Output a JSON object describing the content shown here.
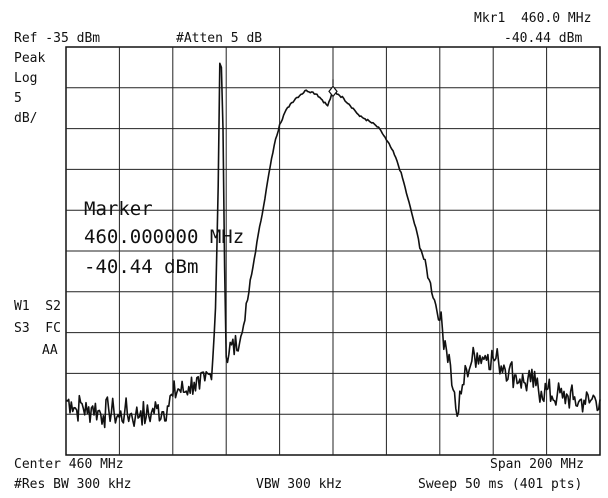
{
  "header": {
    "mkr_label": "Mkr1  460.0 MHz",
    "ref": "Ref -35 dBm",
    "atten": "#Atten 5 dB",
    "mkr_value": "-40.44 dBm"
  },
  "left_panel": {
    "peak": "Peak",
    "log": "Log",
    "scale_num": "5",
    "scale_unit": "dB/",
    "w1s2": "W1  S2",
    "s3fc": "S3  FC",
    "aa": "AA"
  },
  "marker_box": {
    "title": "Marker",
    "freq": "460.000000 MHz",
    "level": "-40.44 dBm"
  },
  "footer": {
    "center": "Center 460 MHz",
    "span": "Span 200 MHz",
    "rbw": "#Res BW 300 kHz",
    "vbw": "VBW 300 kHz",
    "sweep": "Sweep 50 ms (401 pts)"
  },
  "chart_data": {
    "type": "line",
    "x_unit": "MHz",
    "y_unit": "dBm",
    "xlim": [
      360,
      560
    ],
    "ylim": [
      -85,
      -35
    ],
    "grid": true,
    "divisions": {
      "x": 10,
      "y": 10
    },
    "series": [
      {
        "points": [
          [
            360,
            -78.3
          ],
          [
            362,
            -78.5
          ],
          [
            364,
            -79.5
          ],
          [
            366,
            -78.7
          ],
          [
            368,
            -79.9
          ],
          [
            370,
            -79.0
          ],
          [
            372,
            -79.6
          ],
          [
            374,
            -80.2
          ],
          [
            376,
            -79.4
          ],
          [
            378,
            -79.8
          ],
          [
            380,
            -80.4
          ],
          [
            382,
            -79.7
          ],
          [
            384,
            -80.0
          ],
          [
            386,
            -80.3
          ],
          [
            388,
            -79.6
          ],
          [
            390,
            -80.4
          ],
          [
            392,
            -79.8
          ],
          [
            394,
            -79.3
          ],
          [
            396,
            -79.7
          ],
          [
            398,
            -79.0
          ],
          [
            400,
            -77.8
          ],
          [
            402,
            -76.9
          ],
          [
            404,
            -77.3
          ],
          [
            406,
            -76.6
          ],
          [
            408,
            -76.1
          ],
          [
            410,
            -76.9
          ],
          [
            412,
            -75.9
          ],
          [
            414,
            -75.1
          ],
          [
            415,
            -73.0
          ],
          [
            416,
            -67.0
          ],
          [
            417,
            -52.0
          ],
          [
            417.6,
            -37.0
          ],
          [
            418.2,
            -37.5
          ],
          [
            418.8,
            -45.0
          ],
          [
            419.4,
            -62.0
          ],
          [
            420,
            -73.0
          ],
          [
            422,
            -71.5
          ],
          [
            424,
            -72.2
          ],
          [
            426,
            -70.0
          ],
          [
            428,
            -66.0
          ],
          [
            430,
            -62.0
          ],
          [
            432,
            -58.0
          ],
          [
            434,
            -54.5
          ],
          [
            436,
            -50.5
          ],
          [
            438,
            -47.0
          ],
          [
            440,
            -44.5
          ],
          [
            442,
            -43.0
          ],
          [
            444,
            -42.0
          ],
          [
            446,
            -41.3
          ],
          [
            448,
            -40.8
          ],
          [
            450,
            -40.3
          ],
          [
            452,
            -40.5
          ],
          [
            454,
            -40.8
          ],
          [
            456,
            -41.5
          ],
          [
            458,
            -42.2
          ],
          [
            460,
            -40.44
          ],
          [
            462,
            -40.8
          ],
          [
            464,
            -41.3
          ],
          [
            466,
            -42.0
          ],
          [
            468,
            -42.7
          ],
          [
            470,
            -43.5
          ],
          [
            472,
            -43.8
          ],
          [
            474,
            -44.2
          ],
          [
            476,
            -44.6
          ],
          [
            478,
            -45.3
          ],
          [
            480,
            -46.4
          ],
          [
            482,
            -47.5
          ],
          [
            484,
            -49.0
          ],
          [
            486,
            -51.0
          ],
          [
            488,
            -53.5
          ],
          [
            490,
            -56.0
          ],
          [
            492,
            -58.5
          ],
          [
            494,
            -61.0
          ],
          [
            496,
            -63.5
          ],
          [
            498,
            -66.0
          ],
          [
            500,
            -68.5
          ],
          [
            502,
            -71.0
          ],
          [
            504,
            -74.0
          ],
          [
            505,
            -77.0
          ],
          [
            506,
            -79.3
          ],
          [
            507,
            -79.8
          ],
          [
            508,
            -77.5
          ],
          [
            510,
            -74.5
          ],
          [
            512,
            -73.5
          ],
          [
            514,
            -72.5
          ],
          [
            516,
            -73.0
          ],
          [
            518,
            -72.7
          ],
          [
            520,
            -73.2
          ],
          [
            522,
            -73.5
          ],
          [
            524,
            -74.0
          ],
          [
            526,
            -74.5
          ],
          [
            528,
            -75.2
          ],
          [
            530,
            -75.7
          ],
          [
            532,
            -76.2
          ],
          [
            534,
            -76.0
          ],
          [
            536,
            -76.5
          ],
          [
            538,
            -77.2
          ],
          [
            540,
            -77.0
          ],
          [
            542,
            -77.8
          ],
          [
            544,
            -77.6
          ],
          [
            546,
            -78.0
          ],
          [
            548,
            -77.8
          ],
          [
            550,
            -78.2
          ],
          [
            552,
            -78.5
          ],
          [
            554,
            -78.3
          ],
          [
            556,
            -78.6
          ],
          [
            558,
            -77.9
          ],
          [
            560,
            -78.2
          ]
        ],
        "color": "#111111"
      }
    ],
    "marker": {
      "x": 460,
      "y": -40.44
    }
  }
}
